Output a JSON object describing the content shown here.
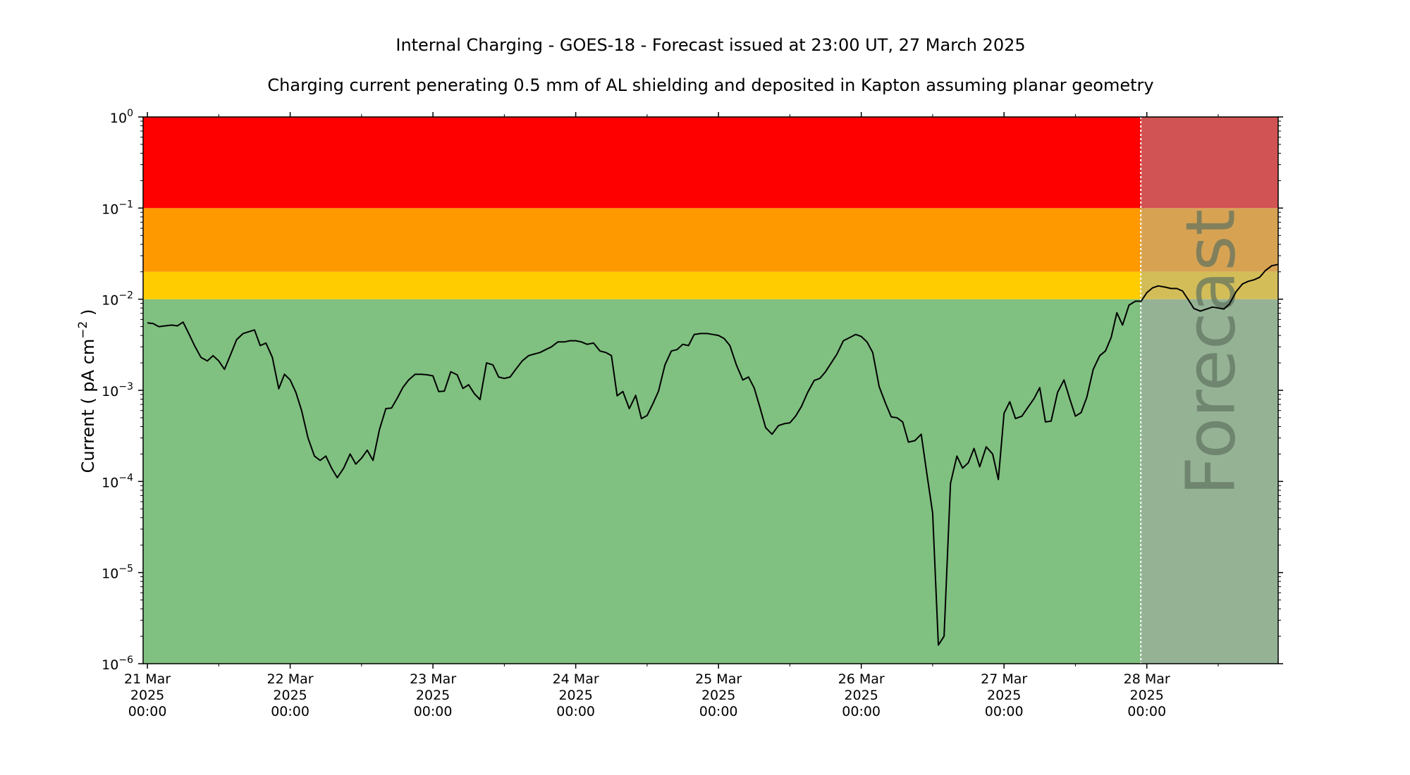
{
  "chart_data": {
    "type": "line",
    "title": "Internal Charging - GOES-18 - Forecast issued at 23:00 UT, 27 March 2025",
    "subtitle": "Charging current penerating 0.5 mm of AL shielding and deposited in Kapton assuming planar geometry",
    "ylabel": "Current ( pA cm^-2 )",
    "ylabel_parts": {
      "prefix": "Current ( pA cm",
      "sup": "−2",
      "suffix": " )"
    },
    "xlabel": "",
    "y_scale": "log",
    "ylim": [
      1e-06,
      1
    ],
    "yticks": [
      {
        "value": 1e-06,
        "base": "10",
        "exp": "−6"
      },
      {
        "value": 1e-05,
        "base": "10",
        "exp": "−5"
      },
      {
        "value": 0.0001,
        "base": "10",
        "exp": "−4"
      },
      {
        "value": 0.001,
        "base": "10",
        "exp": "−3"
      },
      {
        "value": 0.01,
        "base": "10",
        "exp": "−2"
      },
      {
        "value": 0.1,
        "base": "10",
        "exp": "−1"
      },
      {
        "value": 1,
        "base": "10",
        "exp": "0"
      }
    ],
    "xlim_days": [
      -0.03,
      7.92
    ],
    "xticks": [
      {
        "day": 0,
        "lines": [
          "21 Mar",
          "2025",
          "00:00"
        ]
      },
      {
        "day": 1,
        "lines": [
          "22 Mar",
          "2025",
          "00:00"
        ]
      },
      {
        "day": 2,
        "lines": [
          "23 Mar",
          "2025",
          "00:00"
        ]
      },
      {
        "day": 3,
        "lines": [
          "24 Mar",
          "2025",
          "00:00"
        ]
      },
      {
        "day": 4,
        "lines": [
          "25 Mar",
          "2025",
          "00:00"
        ]
      },
      {
        "day": 5,
        "lines": [
          "26 Mar",
          "2025",
          "00:00"
        ]
      },
      {
        "day": 6,
        "lines": [
          "27 Mar",
          "2025",
          "00:00"
        ]
      },
      {
        "day": 7,
        "lines": [
          "28 Mar",
          "2025",
          "00:00"
        ]
      }
    ],
    "x_origin": "21 Mar 2025 00:00",
    "forecast_start_day": 6.958,
    "forecast_label": "Forecast",
    "grid": false,
    "bands": [
      {
        "name": "green",
        "from": 1e-06,
        "to": 0.01,
        "color": "#80c080",
        "forecast_color": "#95b295"
      },
      {
        "name": "yellow",
        "from": 0.01,
        "to": 0.02,
        "color": "#ffcc00",
        "forecast_color": "#d3bd58"
      },
      {
        "name": "orange",
        "from": 0.02,
        "to": 0.1,
        "color": "#ff9900",
        "forecast_color": "#d7a353"
      },
      {
        "name": "red",
        "from": 0.1,
        "to": 1,
        "color": "#ff0000",
        "forecast_color": "#d25353"
      }
    ],
    "series": [
      {
        "color": "#000000",
        "points": [
          [
            0.0,
            0.0055
          ],
          [
            0.04,
            0.0054
          ],
          [
            0.08,
            0.005
          ],
          [
            0.125,
            0.0051
          ],
          [
            0.17,
            0.0052
          ],
          [
            0.21,
            0.0051
          ],
          [
            0.25,
            0.0056
          ],
          [
            0.29,
            0.0042
          ],
          [
            0.33,
            0.0031
          ],
          [
            0.375,
            0.0023
          ],
          [
            0.42,
            0.0021
          ],
          [
            0.46,
            0.0024
          ],
          [
            0.5,
            0.0021
          ],
          [
            0.54,
            0.0017
          ],
          [
            0.58,
            0.0024
          ],
          [
            0.625,
            0.0036
          ],
          [
            0.67,
            0.0042
          ],
          [
            0.71,
            0.0044
          ],
          [
            0.75,
            0.0046
          ],
          [
            0.79,
            0.0031
          ],
          [
            0.83,
            0.0033
          ],
          [
            0.875,
            0.0023
          ],
          [
            0.92,
            0.00104
          ],
          [
            0.96,
            0.0015
          ],
          [
            1.0,
            0.0013
          ],
          [
            1.04,
            0.00095
          ],
          [
            1.08,
            0.0006
          ],
          [
            1.125,
            0.0003
          ],
          [
            1.17,
            0.00019
          ],
          [
            1.21,
            0.00017
          ],
          [
            1.25,
            0.00019
          ],
          [
            1.29,
            0.00014
          ],
          [
            1.33,
            0.00011
          ],
          [
            1.375,
            0.00014
          ],
          [
            1.42,
            0.0002
          ],
          [
            1.46,
            0.000155
          ],
          [
            1.5,
            0.00018
          ],
          [
            1.54,
            0.00022
          ],
          [
            1.58,
            0.00017
          ],
          [
            1.625,
            0.00037
          ],
          [
            1.67,
            0.00063
          ],
          [
            1.71,
            0.00064
          ],
          [
            1.75,
            0.00082
          ],
          [
            1.79,
            0.00108
          ],
          [
            1.83,
            0.0013
          ],
          [
            1.875,
            0.0015
          ],
          [
            1.92,
            0.0015
          ],
          [
            1.96,
            0.00148
          ],
          [
            2.0,
            0.00144
          ],
          [
            2.04,
            0.00097
          ],
          [
            2.08,
            0.00098
          ],
          [
            2.125,
            0.0016
          ],
          [
            2.17,
            0.00148
          ],
          [
            2.21,
            0.00105
          ],
          [
            2.25,
            0.00115
          ],
          [
            2.29,
            0.00092
          ],
          [
            2.33,
            0.00079
          ],
          [
            2.375,
            0.002
          ],
          [
            2.42,
            0.0019
          ],
          [
            2.46,
            0.0014
          ],
          [
            2.5,
            0.00135
          ],
          [
            2.54,
            0.0014
          ],
          [
            2.58,
            0.0017
          ],
          [
            2.625,
            0.0021
          ],
          [
            2.67,
            0.0024
          ],
          [
            2.71,
            0.0025
          ],
          [
            2.75,
            0.0026
          ],
          [
            2.79,
            0.0028
          ],
          [
            2.83,
            0.003
          ],
          [
            2.875,
            0.0034
          ],
          [
            2.92,
            0.0034
          ],
          [
            2.96,
            0.0035
          ],
          [
            3.0,
            0.0035
          ],
          [
            3.04,
            0.0034
          ],
          [
            3.08,
            0.0032
          ],
          [
            3.125,
            0.0033
          ],
          [
            3.17,
            0.0027
          ],
          [
            3.21,
            0.0026
          ],
          [
            3.25,
            0.0024
          ],
          [
            3.29,
            0.00087
          ],
          [
            3.33,
            0.00097
          ],
          [
            3.375,
            0.00063
          ],
          [
            3.42,
            0.00088
          ],
          [
            3.46,
            0.00049
          ],
          [
            3.5,
            0.00053
          ],
          [
            3.54,
            0.00071
          ],
          [
            3.58,
            0.00098
          ],
          [
            3.625,
            0.0019
          ],
          [
            3.67,
            0.0027
          ],
          [
            3.71,
            0.0028
          ],
          [
            3.75,
            0.0032
          ],
          [
            3.79,
            0.0031
          ],
          [
            3.83,
            0.0041
          ],
          [
            3.875,
            0.0042
          ],
          [
            3.92,
            0.0042
          ],
          [
            3.96,
            0.0041
          ],
          [
            4.0,
            0.004
          ],
          [
            4.04,
            0.0037
          ],
          [
            4.08,
            0.0031
          ],
          [
            4.125,
            0.0019
          ],
          [
            4.17,
            0.0013
          ],
          [
            4.21,
            0.0014
          ],
          [
            4.25,
            0.00106
          ],
          [
            4.29,
            0.00065
          ],
          [
            4.33,
            0.00039
          ],
          [
            4.375,
            0.00033
          ],
          [
            4.42,
            0.00041
          ],
          [
            4.46,
            0.00043
          ],
          [
            4.5,
            0.00044
          ],
          [
            4.54,
            0.00052
          ],
          [
            4.58,
            0.00066
          ],
          [
            4.625,
            0.00095
          ],
          [
            4.67,
            0.00128
          ],
          [
            4.71,
            0.00135
          ],
          [
            4.75,
            0.0016
          ],
          [
            4.79,
            0.002
          ],
          [
            4.83,
            0.0025
          ],
          [
            4.875,
            0.0035
          ],
          [
            4.92,
            0.0038
          ],
          [
            4.96,
            0.0041
          ],
          [
            5.0,
            0.0039
          ],
          [
            5.04,
            0.0034
          ],
          [
            5.08,
            0.0026
          ],
          [
            5.125,
            0.0011
          ],
          [
            5.17,
            0.00072
          ],
          [
            5.21,
            0.00051
          ],
          [
            5.25,
            0.0005
          ],
          [
            5.29,
            0.00045
          ],
          [
            5.33,
            0.00027
          ],
          [
            5.375,
            0.00028
          ],
          [
            5.42,
            0.00033
          ],
          [
            5.46,
            0.00012
          ],
          [
            5.5,
            4.5e-05
          ],
          [
            5.54,
            1.6e-06
          ],
          [
            5.58,
            2e-06
          ],
          [
            5.625,
            9.5e-05
          ],
          [
            5.67,
            0.00019
          ],
          [
            5.71,
            0.00014
          ],
          [
            5.75,
            0.00016
          ],
          [
            5.79,
            0.00023
          ],
          [
            5.83,
            0.000145
          ],
          [
            5.875,
            0.00024
          ],
          [
            5.92,
            0.0002
          ],
          [
            5.96,
            0.000105
          ],
          [
            6.0,
            0.00056
          ],
          [
            6.04,
            0.00075
          ],
          [
            6.08,
            0.00049
          ],
          [
            6.125,
            0.00052
          ],
          [
            6.17,
            0.00066
          ],
          [
            6.21,
            0.00081
          ],
          [
            6.25,
            0.00107
          ],
          [
            6.29,
            0.00045
          ],
          [
            6.33,
            0.00046
          ],
          [
            6.375,
            0.00095
          ],
          [
            6.42,
            0.0013
          ],
          [
            6.46,
            0.00081
          ],
          [
            6.5,
            0.00052
          ],
          [
            6.54,
            0.00057
          ],
          [
            6.58,
            0.00084
          ],
          [
            6.625,
            0.0017
          ],
          [
            6.67,
            0.0024
          ],
          [
            6.71,
            0.0027
          ],
          [
            6.75,
            0.0038
          ],
          [
            6.79,
            0.0071
          ],
          [
            6.83,
            0.0052
          ],
          [
            6.875,
            0.0086
          ],
          [
            6.92,
            0.0095
          ],
          [
            6.96,
            0.0095
          ],
          [
            7.0,
            0.0118
          ],
          [
            7.04,
            0.0133
          ],
          [
            7.08,
            0.014
          ],
          [
            7.125,
            0.0136
          ],
          [
            7.17,
            0.0131
          ],
          [
            7.21,
            0.0131
          ],
          [
            7.25,
            0.0123
          ],
          [
            7.29,
            0.0099
          ],
          [
            7.33,
            0.0079
          ],
          [
            7.375,
            0.0074
          ],
          [
            7.42,
            0.0078
          ],
          [
            7.46,
            0.0082
          ],
          [
            7.5,
            0.008
          ],
          [
            7.54,
            0.0078
          ],
          [
            7.58,
            0.0089
          ],
          [
            7.625,
            0.0121
          ],
          [
            7.67,
            0.0147
          ],
          [
            7.71,
            0.0157
          ],
          [
            7.75,
            0.0163
          ],
          [
            7.79,
            0.0174
          ],
          [
            7.83,
            0.0206
          ],
          [
            7.875,
            0.0233
          ],
          [
            7.92,
            0.0241
          ]
        ]
      }
    ]
  }
}
